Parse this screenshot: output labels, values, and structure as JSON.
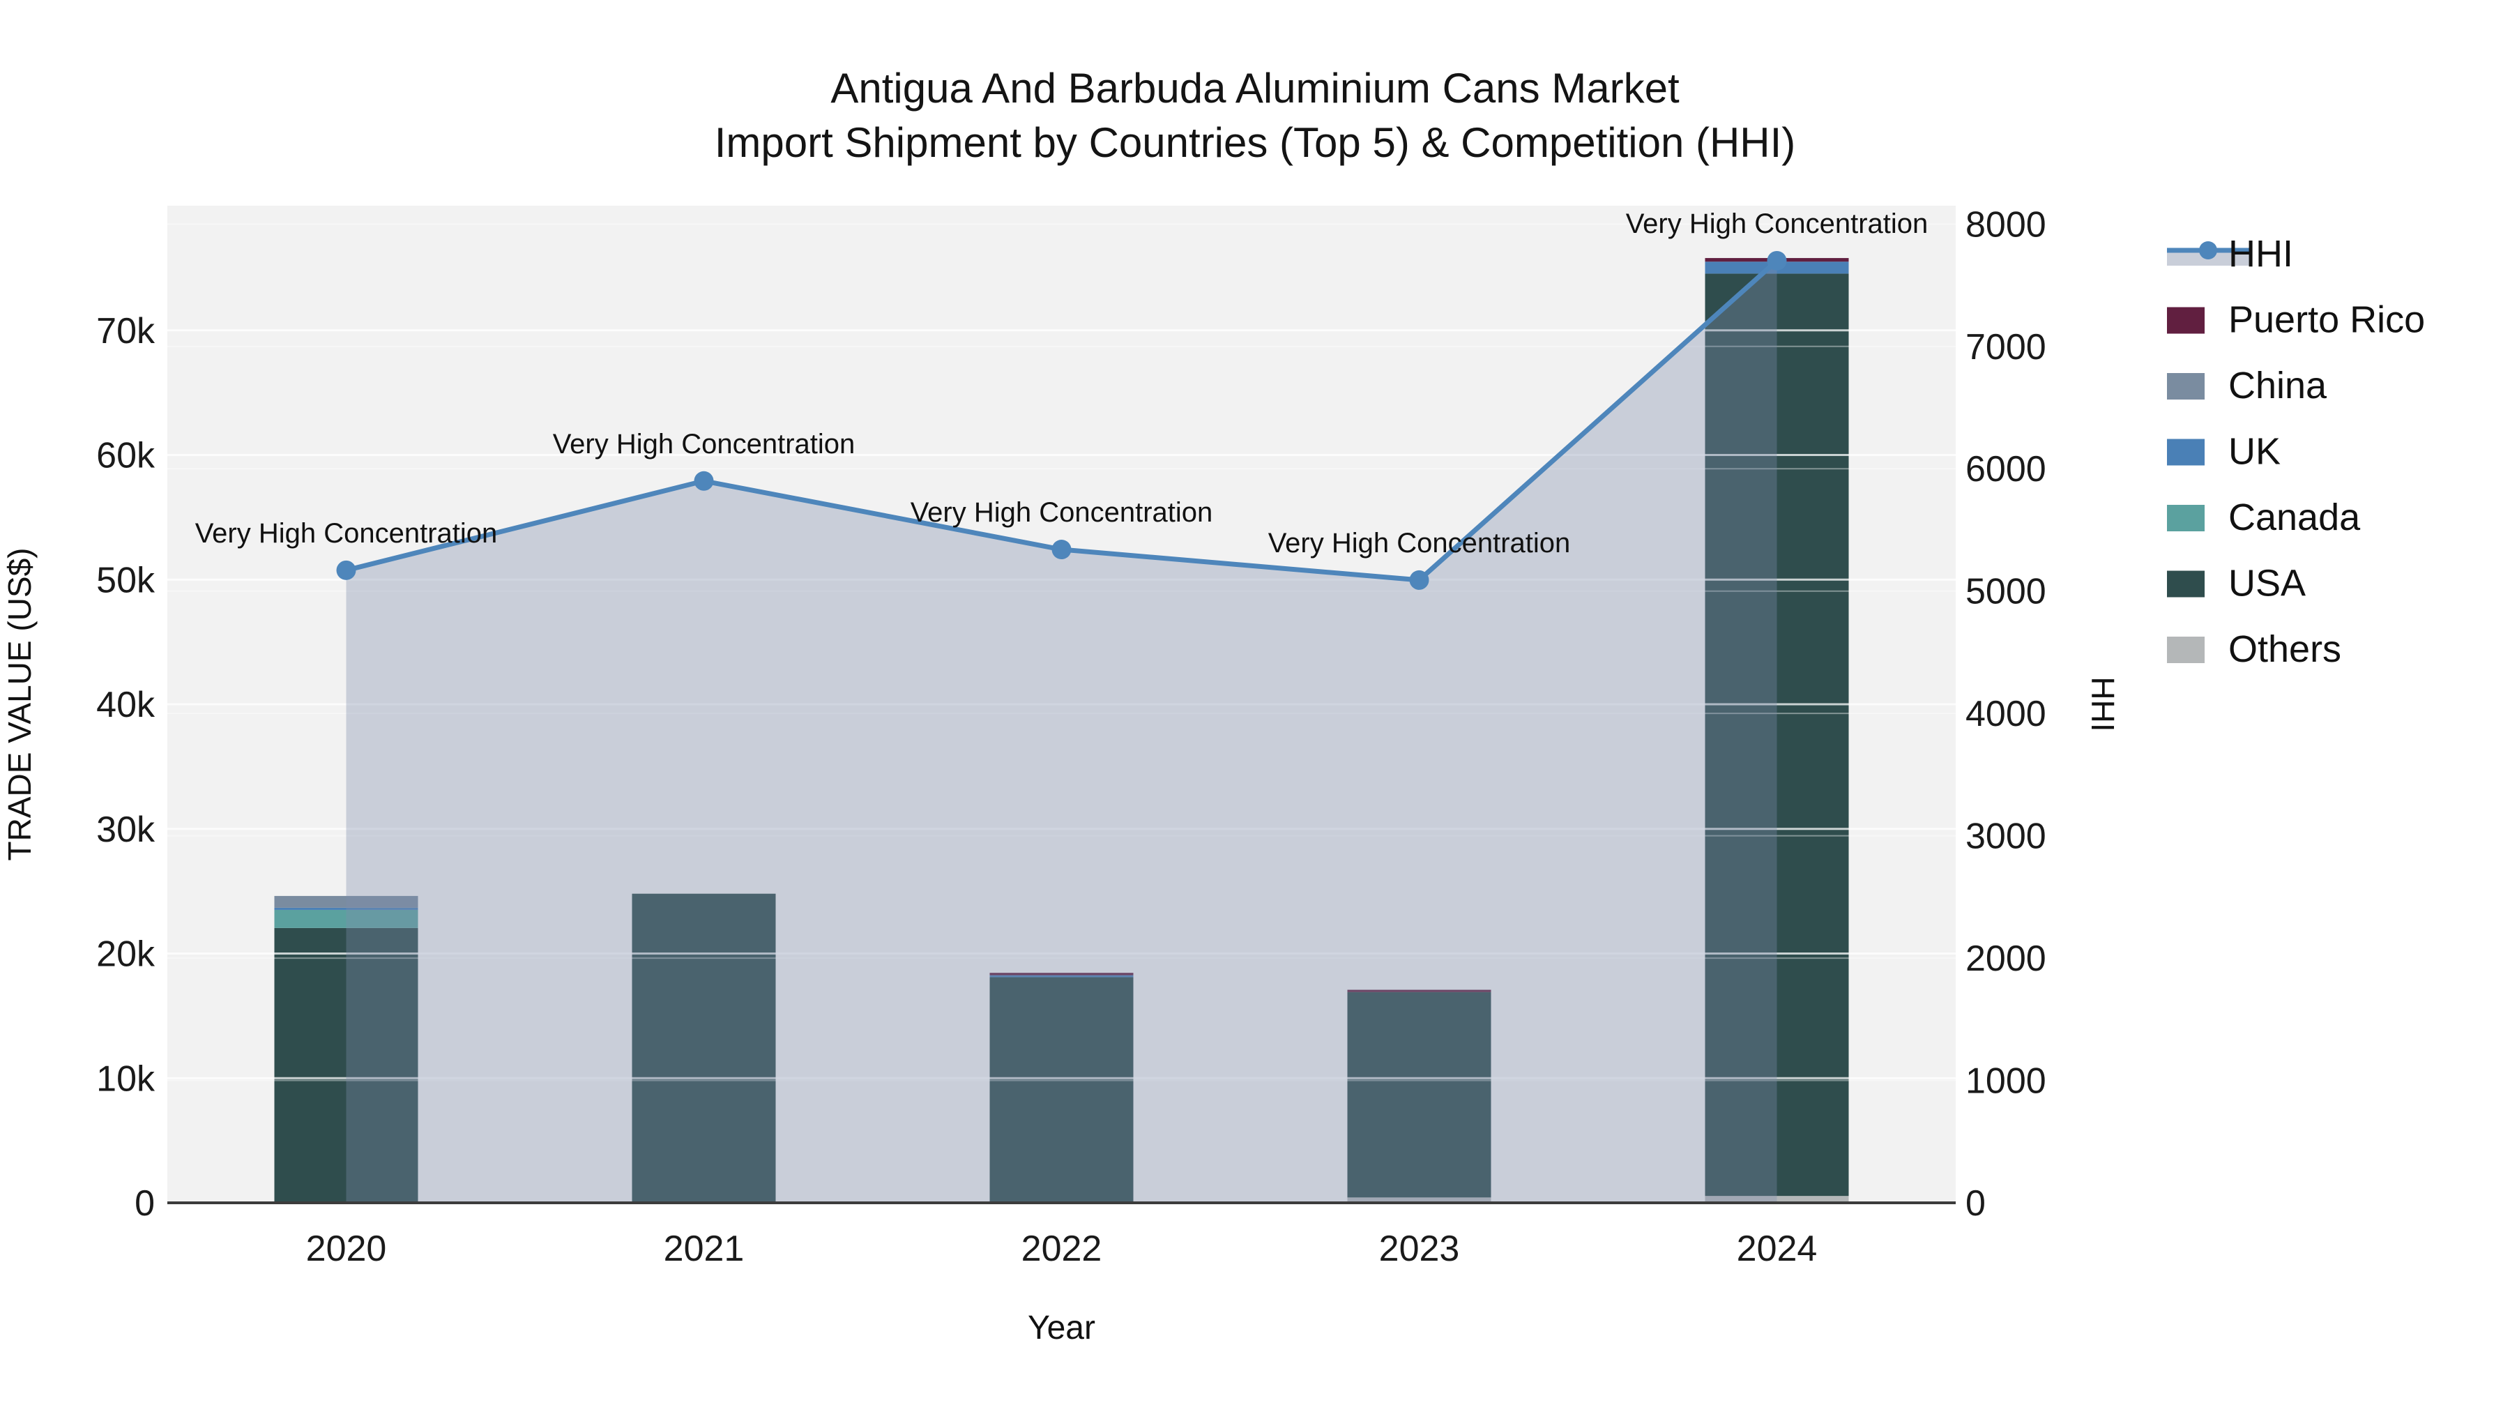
{
  "title": {
    "line1": "Antigua And Barbuda Aluminium Cans Market",
    "line2": "Import Shipment by Countries (Top 5) & Competition (HHI)"
  },
  "legend": {
    "items": [
      {
        "label": "HHI",
        "type": "line",
        "color": "#4e86bb",
        "area": "#c9ced9"
      },
      {
        "label": "Puerto Rico",
        "type": "swatch",
        "color": "#611f40"
      },
      {
        "label": "China",
        "type": "swatch",
        "color": "#7a8ca0"
      },
      {
        "label": "UK",
        "type": "swatch",
        "color": "#4a80b6"
      },
      {
        "label": "Canada",
        "type": "swatch",
        "color": "#5ba19f"
      },
      {
        "label": "USA",
        "type": "swatch",
        "color": "#2f4d4d"
      },
      {
        "label": "Others",
        "type": "swatch",
        "color": "#b4b7b8"
      }
    ]
  },
  "chart_data": {
    "type": "combo-stacked-bar-line",
    "categories": [
      "2020",
      "2021",
      "2022",
      "2023",
      "2024"
    ],
    "bar_series": [
      {
        "name": "Others",
        "color": "#b4b7b8",
        "values": [
          0,
          0,
          0,
          430,
          550
        ]
      },
      {
        "name": "USA",
        "color": "#2f4d4d",
        "values": [
          22050,
          24800,
          18100,
          16480,
          74000
        ]
      },
      {
        "name": "Canada",
        "color": "#5ba19f",
        "values": [
          1450,
          0,
          0,
          0,
          0
        ]
      },
      {
        "name": "UK",
        "color": "#4a80b6",
        "values": [
          170,
          0,
          160,
          0,
          960
        ]
      },
      {
        "name": "China",
        "color": "#7a8ca0",
        "values": [
          950,
          0,
          0,
          0,
          0
        ]
      },
      {
        "name": "Puerto Rico",
        "color": "#611f40",
        "values": [
          0,
          0,
          190,
          180,
          290
        ]
      }
    ],
    "line_series": {
      "name": "HHI",
      "color": "#4e86bb",
      "area_color": "rgba(125,139,171,0.35)",
      "values": [
        5170,
        5900,
        5340,
        5090,
        7700
      ]
    },
    "annotations": [
      "Very High Concentration",
      "Very High Concentration",
      "Very High Concentration",
      "Very High Concentration",
      "Very High Concentration"
    ],
    "x_title": "Year",
    "y_left": {
      "title": "TRADE VALUE (US$)",
      "range": [
        0,
        80000
      ],
      "ticks": [
        {
          "v": 0,
          "label": "0"
        },
        {
          "v": 10000,
          "label": "10k"
        },
        {
          "v": 20000,
          "label": "20k"
        },
        {
          "v": 30000,
          "label": "30k"
        },
        {
          "v": 40000,
          "label": "40k"
        },
        {
          "v": 50000,
          "label": "50k"
        },
        {
          "v": 60000,
          "label": "60k"
        },
        {
          "v": 70000,
          "label": "70k"
        }
      ]
    },
    "y_right": {
      "title": "HHI",
      "range": [
        0,
        8150
      ],
      "ticks": [
        {
          "v": 0,
          "label": "0"
        },
        {
          "v": 1000,
          "label": "1000"
        },
        {
          "v": 2000,
          "label": "2000"
        },
        {
          "v": 3000,
          "label": "3000"
        },
        {
          "v": 4000,
          "label": "4000"
        },
        {
          "v": 5000,
          "label": "5000"
        },
        {
          "v": 6000,
          "label": "6000"
        },
        {
          "v": 7000,
          "label": "7000"
        },
        {
          "v": 8000,
          "label": "8000"
        }
      ]
    },
    "plot_bg": "#f2f2f2",
    "grid": "on",
    "legend_position": "right"
  }
}
